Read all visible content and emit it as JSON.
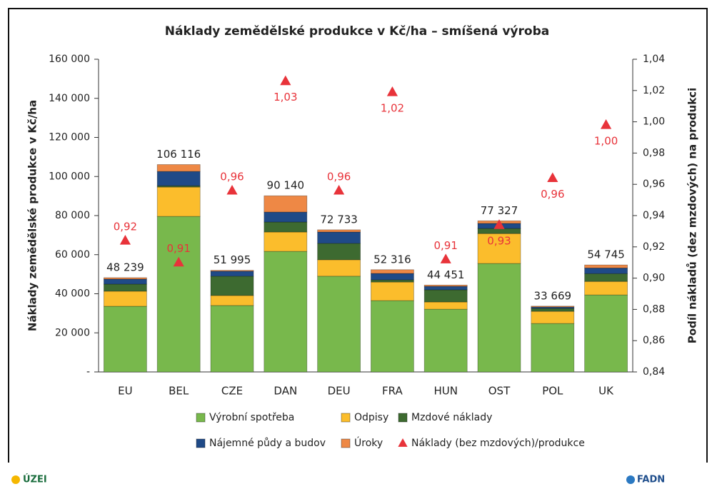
{
  "chart_data": {
    "type": "bar",
    "title": "Náklady zemědělské produkce v Kč/ha – smíšená výroba",
    "y_label": "Náklady zemědělské produkce v Kč/ha",
    "y2_label": "Podíl nákladů (dez mzdových) na produkci",
    "categories": [
      "EU",
      "BEL",
      "CZE",
      "DAN",
      "DEU",
      "FRA",
      "HUN",
      "OST",
      "POL",
      "UK"
    ],
    "stacked": true,
    "series": [
      {
        "name": "Výrobní spotřeba",
        "color": "#78b84c",
        "values": [
          33600,
          79600,
          34000,
          61700,
          49000,
          36500,
          32100,
          55500,
          24800,
          39400
        ]
      },
      {
        "name": "Odpisy",
        "color": "#fbbd2c",
        "values": [
          7700,
          15000,
          5100,
          9900,
          8400,
          9500,
          3700,
          15300,
          6200,
          6900
        ]
      },
      {
        "name": "Mzdové náklady",
        "color": "#3d6a30",
        "values": [
          3650,
          700,
          9900,
          5100,
          8400,
          1100,
          6200,
          2600,
          1500,
          4000
        ]
      },
      {
        "name": "Nájemné půdy a budov",
        "color": "#1f4a87",
        "values": [
          2550,
          7300,
          2550,
          5100,
          5800,
          3300,
          1800,
          2600,
          700,
          2900
        ]
      },
      {
        "name": "Úroky",
        "color": "#ee8845",
        "values": [
          739,
          3516,
          445,
          8340,
          1133,
          1916,
          651,
          1327,
          469,
          1545
        ]
      },
      {
        "name": "Náklady (bez mzdových)/produkce",
        "type": "scatter",
        "axis": "y2",
        "color": "#e8333a",
        "values": [
          0.924,
          0.91,
          0.956,
          1.026,
          0.956,
          1.019,
          0.912,
          0.934,
          0.964,
          0.998
        ],
        "value_labels": [
          "0,92",
          "0,91",
          "0,96",
          "1,03",
          "0,96",
          "1,02",
          "0,91",
          "0,93",
          "0,96",
          "1,00"
        ]
      }
    ],
    "totals": [
      48239,
      106116,
      51995,
      90140,
      72733,
      52316,
      44451,
      77327,
      33669,
      54745
    ],
    "total_labels": [
      "48 239",
      "106 116",
      "51 995",
      "90 140",
      "72 733",
      "52 316",
      "44 451",
      "77 327",
      "33 669",
      "54 745"
    ],
    "ylim": [
      0,
      160000
    ],
    "yticks": [
      {
        "value": 0,
        "label": "-"
      },
      {
        "value": 20000,
        "label": "20 000"
      },
      {
        "value": 40000,
        "label": "40 000"
      },
      {
        "value": 60000,
        "label": "60 000"
      },
      {
        "value": 80000,
        "label": "80 000"
      },
      {
        "value": 100000,
        "label": "100 000"
      },
      {
        "value": 120000,
        "label": "120 000"
      },
      {
        "value": 140000,
        "label": "140 000"
      },
      {
        "value": 160000,
        "label": "160 000"
      }
    ],
    "y2lim": [
      0.84,
      1.04
    ],
    "y2ticks": [
      {
        "value": 0.84,
        "label": "0,84"
      },
      {
        "value": 0.86,
        "label": "0,86"
      },
      {
        "value": 0.88,
        "label": "0,88"
      },
      {
        "value": 0.9,
        "label": "0,90"
      },
      {
        "value": 0.92,
        "label": "0,92"
      },
      {
        "value": 0.94,
        "label": "0,94"
      },
      {
        "value": 0.96,
        "label": "0,96"
      },
      {
        "value": 0.98,
        "label": "0,98"
      },
      {
        "value": 1.0,
        "label": "1,00"
      },
      {
        "value": 1.02,
        "label": "1,02"
      },
      {
        "value": 1.04,
        "label": "1,04"
      }
    ],
    "grid": false,
    "legend": "bottom",
    "footer_left": "ÚZEI",
    "footer_right": "FADN"
  }
}
